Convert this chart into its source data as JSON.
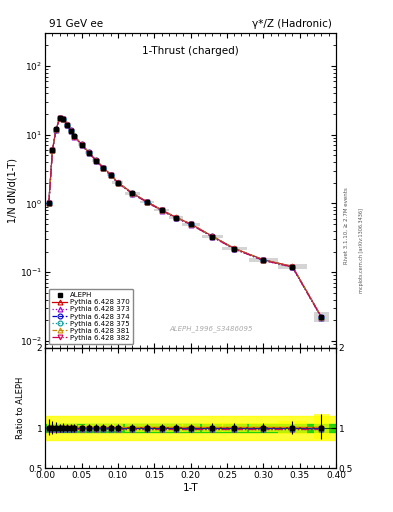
{
  "title_left": "91 GeV ee",
  "title_right": "γ*/Z (Hadronic)",
  "plot_title": "1-Thrust (charged)",
  "xlabel": "1-T",
  "ylabel_main": "1/N dN/d(1-T)",
  "ylabel_ratio": "Ratio to ALEPH",
  "right_label_top": "Rivet 3.1.10, ≥ 2.7M events",
  "right_label_bot": "mcplots.cern.ch [arXiv:1306.3436]",
  "watermark": "ALEPH_1996_S3486095",
  "x_data": [
    0.005,
    0.01,
    0.015,
    0.02,
    0.025,
    0.03,
    0.035,
    0.04,
    0.05,
    0.06,
    0.07,
    0.08,
    0.09,
    0.1,
    0.12,
    0.14,
    0.16,
    0.18,
    0.2,
    0.23,
    0.26,
    0.3,
    0.34,
    0.38
  ],
  "y_data": [
    1.02,
    6.0,
    12.0,
    17.5,
    17.0,
    14.0,
    11.5,
    9.5,
    7.2,
    5.5,
    4.2,
    3.3,
    2.6,
    2.0,
    1.4,
    1.05,
    0.8,
    0.62,
    0.5,
    0.33,
    0.22,
    0.15,
    0.12,
    0.022
  ],
  "y_err_lo": [
    0.08,
    0.4,
    0.7,
    0.8,
    0.8,
    0.65,
    0.55,
    0.45,
    0.28,
    0.22,
    0.16,
    0.13,
    0.1,
    0.08,
    0.06,
    0.045,
    0.035,
    0.028,
    0.022,
    0.015,
    0.01,
    0.007,
    0.009,
    0.003
  ],
  "y_err_hi": [
    0.12,
    0.5,
    0.9,
    1.0,
    1.0,
    0.75,
    0.65,
    0.55,
    0.32,
    0.28,
    0.2,
    0.17,
    0.14,
    0.1,
    0.08,
    0.055,
    0.045,
    0.032,
    0.028,
    0.021,
    0.014,
    0.009,
    0.011,
    0.004
  ],
  "xlim": [
    0.0,
    0.4
  ],
  "ylim_main": [
    0.008,
    300
  ],
  "ylim_ratio": [
    0.5,
    2.0
  ],
  "mc_sets": [
    {
      "label": "Pythia 6.428 370",
      "color": "#cc0000",
      "linestyle": "-",
      "marker": "^",
      "mfc": "none"
    },
    {
      "label": "Pythia 6.428 373",
      "color": "#9900cc",
      "linestyle": ":",
      "marker": "^",
      "mfc": "none"
    },
    {
      "label": "Pythia 6.428 374",
      "color": "#0000cc",
      "linestyle": "--",
      "marker": "o",
      "mfc": "none"
    },
    {
      "label": "Pythia 6.428 375",
      "color": "#009999",
      "linestyle": ":",
      "marker": "o",
      "mfc": "none"
    },
    {
      "label": "Pythia 6.428 381",
      "color": "#cc8800",
      "linestyle": "--",
      "marker": "^",
      "mfc": "none"
    },
    {
      "label": "Pythia 6.428 382",
      "color": "#cc0055",
      "linestyle": "-.",
      "marker": "v",
      "mfc": "none"
    }
  ],
  "mc_scale": [
    1.012,
    0.988,
    1.006,
    0.994,
    1.01,
    0.99
  ],
  "ratio_green_hw": 0.05,
  "ratio_yellow_hw": 0.15,
  "bg": "#ffffff"
}
